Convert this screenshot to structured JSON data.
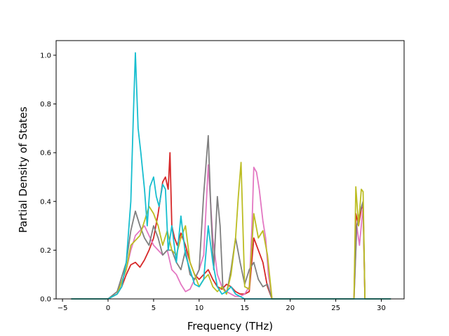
{
  "chart_data": {
    "type": "line",
    "title": "",
    "xlabel": "Frequency (THz)",
    "ylabel": "Partial Density of States",
    "xlim": [
      -5.7,
      32.5
    ],
    "ylim": [
      0.0,
      1.06
    ],
    "xticks": [
      -5,
      0,
      5,
      10,
      15,
      20,
      25,
      30
    ],
    "yticks": [
      0.0,
      0.2,
      0.4,
      0.6,
      0.8,
      1.0
    ],
    "xtick_labels": [
      "−5",
      "0",
      "5",
      "10",
      "15",
      "20",
      "25",
      "30"
    ],
    "ytick_labels": [
      "0.0",
      "0.2",
      "0.4",
      "0.6",
      "0.8",
      "1.0"
    ],
    "grid": false,
    "series": [
      {
        "color": "#d62728",
        "x": [
          -4,
          0,
          1,
          1.5,
          2,
          2.5,
          3,
          3.5,
          4,
          4.5,
          5,
          5.5,
          6,
          6.3,
          6.6,
          6.8,
          7,
          7.3,
          7.6,
          8,
          8.5,
          9,
          9.5,
          10,
          10.5,
          11,
          11.5,
          12,
          12.5,
          13,
          13.5,
          14,
          14.5,
          15,
          15.5,
          16,
          16.5,
          17,
          17.5,
          18,
          20,
          27,
          27.2,
          27.5,
          27.8,
          28,
          28.2,
          31
        ],
        "y": [
          0,
          0,
          0.02,
          0.05,
          0.1,
          0.14,
          0.15,
          0.13,
          0.16,
          0.2,
          0.25,
          0.35,
          0.48,
          0.5,
          0.45,
          0.6,
          0.3,
          0.25,
          0.22,
          0.27,
          0.22,
          0.15,
          0.1,
          0.08,
          0.1,
          0.12,
          0.08,
          0.05,
          0.04,
          0.06,
          0.05,
          0.03,
          0.02,
          0.02,
          0.03,
          0.25,
          0.2,
          0.15,
          0.05,
          0.0,
          0,
          0,
          0.35,
          0.3,
          0.37,
          0.38,
          0.0,
          0
        ]
      },
      {
        "color": "#e377c2",
        "x": [
          -4,
          0,
          1,
          2,
          2.5,
          3,
          3.5,
          4,
          4.5,
          5,
          5.5,
          6,
          6.5,
          7,
          7.5,
          8,
          8.5,
          9,
          9.5,
          10,
          10.5,
          11,
          11.5,
          12,
          12.5,
          13,
          13.5,
          14,
          14.5,
          15,
          15.5,
          15.8,
          16,
          16.3,
          16.6,
          17,
          17.3,
          17.6,
          18,
          20,
          27,
          27.3,
          27.6,
          28,
          28.2,
          31
        ],
        "y": [
          0,
          0,
          0.02,
          0.12,
          0.2,
          0.26,
          0.28,
          0.3,
          0.26,
          0.22,
          0.2,
          0.18,
          0.2,
          0.12,
          0.1,
          0.06,
          0.03,
          0.04,
          0.08,
          0.12,
          0.18,
          0.55,
          0.25,
          0.1,
          0.05,
          0.03,
          0.02,
          0.01,
          0.01,
          0.02,
          0.05,
          0.3,
          0.54,
          0.52,
          0.45,
          0.32,
          0.25,
          0.1,
          0.0,
          0,
          0,
          0.3,
          0.22,
          0.38,
          0.0,
          0
        ]
      },
      {
        "color": "#7f7f7f",
        "x": [
          -4,
          0,
          1,
          2,
          2.5,
          3,
          3.5,
          4,
          4.5,
          5,
          5.5,
          6,
          6.5,
          7,
          7.5,
          8,
          8.5,
          9,
          9.5,
          10,
          10.5,
          11,
          11.3,
          11.6,
          12,
          12.3,
          12.6,
          13,
          13.5,
          14,
          14.5,
          15,
          15.5,
          16,
          16.5,
          17,
          17.5,
          18,
          20,
          27,
          27.3,
          27.6,
          28,
          28.2,
          31
        ],
        "y": [
          0,
          0,
          0.03,
          0.15,
          0.28,
          0.36,
          0.3,
          0.25,
          0.22,
          0.3,
          0.25,
          0.18,
          0.2,
          0.2,
          0.15,
          0.12,
          0.2,
          0.1,
          0.08,
          0.12,
          0.43,
          0.67,
          0.35,
          0.12,
          0.42,
          0.3,
          0.05,
          0.02,
          0.12,
          0.25,
          0.15,
          0.06,
          0.12,
          0.15,
          0.08,
          0.05,
          0.06,
          0.0,
          0,
          0,
          0.3,
          0.35,
          0.4,
          0.0,
          0
        ]
      },
      {
        "color": "#bcbd22",
        "x": [
          -4,
          0,
          1,
          2,
          2.5,
          3,
          3.5,
          4,
          4.5,
          5,
          5.5,
          6,
          6.5,
          7,
          7.5,
          8,
          8.5,
          9,
          9.5,
          10,
          10.5,
          11,
          11.5,
          12,
          12.5,
          13,
          13.5,
          14,
          14.3,
          14.6,
          15,
          15.5,
          16,
          16.5,
          17,
          17.5,
          18,
          20,
          27,
          27.2,
          27.5,
          27.8,
          28,
          28.2,
          31
        ],
        "y": [
          0,
          0,
          0.02,
          0.12,
          0.22,
          0.24,
          0.26,
          0.32,
          0.38,
          0.35,
          0.3,
          0.22,
          0.28,
          0.2,
          0.18,
          0.25,
          0.3,
          0.15,
          0.1,
          0.05,
          0.08,
          0.1,
          0.05,
          0.03,
          0.05,
          0.02,
          0.1,
          0.25,
          0.42,
          0.56,
          0.05,
          0.04,
          0.35,
          0.25,
          0.28,
          0.18,
          0.0,
          0,
          0,
          0.46,
          0.3,
          0.45,
          0.44,
          0.0,
          0
        ]
      },
      {
        "color": "#17becf",
        "x": [
          -4,
          0,
          1,
          1.5,
          2,
          2.5,
          2.8,
          3,
          3.3,
          3.6,
          4,
          4.3,
          4.6,
          5,
          5.3,
          5.6,
          6,
          6.3,
          6.6,
          7,
          7.5,
          8,
          8.5,
          9,
          9.5,
          10,
          10.5,
          11,
          11.5,
          12,
          12.5,
          13,
          13.5,
          14,
          14.5,
          15,
          15.5,
          20,
          31
        ],
        "y": [
          0,
          0,
          0.02,
          0.05,
          0.15,
          0.4,
          0.78,
          1.01,
          0.7,
          0.6,
          0.45,
          0.3,
          0.46,
          0.5,
          0.42,
          0.38,
          0.47,
          0.45,
          0.2,
          0.3,
          0.15,
          0.34,
          0.18,
          0.12,
          0.06,
          0.05,
          0.08,
          0.3,
          0.15,
          0.05,
          0.02,
          0.03,
          0.05,
          0.02,
          0.01,
          0.0,
          0,
          0,
          0
        ]
      }
    ]
  }
}
